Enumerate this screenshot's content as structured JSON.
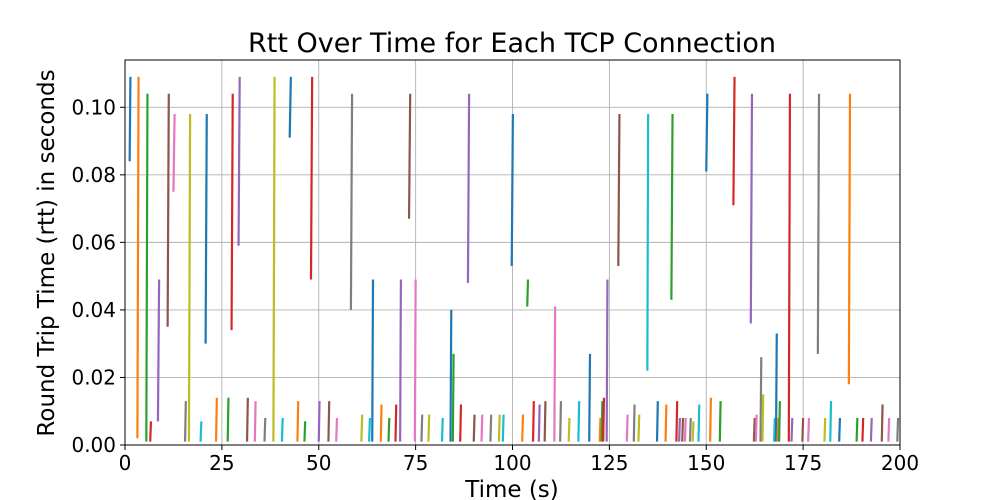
{
  "chart_data": {
    "type": "line",
    "title": "Rtt Over Time for Each TCP Connection",
    "xlabel": "Time (s)",
    "ylabel": "Round Trip Time (rtt) in seconds",
    "xlim": [
      0,
      200
    ],
    "ylim": [
      0,
      0.114
    ],
    "xticks": [
      0,
      25,
      50,
      75,
      100,
      125,
      150,
      175,
      200
    ],
    "xtick_labels": [
      "0",
      "25",
      "50",
      "75",
      "100",
      "125",
      "150",
      "175",
      "200"
    ],
    "yticks": [
      0.0,
      0.02,
      0.04,
      0.06,
      0.08,
      0.1
    ],
    "ytick_labels": [
      "0.00",
      "0.02",
      "0.04",
      "0.06",
      "0.08",
      "0.10"
    ],
    "grid": true,
    "legend": "none",
    "series_colors": [
      "#1f77b4",
      "#ff7f0e",
      "#2ca02c",
      "#d62728",
      "#9467bd",
      "#8c564b",
      "#e377c2",
      "#7f7f7f",
      "#bcbd22",
      "#17becf"
    ],
    "series": [
      {
        "x": [
          1.2,
          1.4
        ],
        "y": [
          0.084,
          0.109
        ],
        "color": "#1f77b4"
      },
      {
        "x": [
          3.2,
          3.5
        ],
        "y": [
          0.002,
          0.109
        ],
        "color": "#ff7f0e"
      },
      {
        "x": [
          5.5,
          5.8
        ],
        "y": [
          0.001,
          0.104
        ],
        "color": "#2ca02c"
      },
      {
        "x": [
          6.5,
          6.7
        ],
        "y": [
          0.001,
          0.007
        ],
        "color": "#d62728"
      },
      {
        "x": [
          8.5,
          8.8
        ],
        "y": [
          0.007,
          0.049
        ],
        "color": "#9467bd"
      },
      {
        "x": [
          11.0,
          11.3
        ],
        "y": [
          0.035,
          0.104
        ],
        "color": "#8c564b"
      },
      {
        "x": [
          12.5,
          12.8
        ],
        "y": [
          0.075,
          0.098
        ],
        "color": "#e377c2"
      },
      {
        "x": [
          15.5,
          15.7
        ],
        "y": [
          0.001,
          0.013
        ],
        "color": "#7f7f7f"
      },
      {
        "x": [
          16.5,
          16.8
        ],
        "y": [
          0.001,
          0.098
        ],
        "color": "#bcbd22"
      },
      {
        "x": [
          19.5,
          19.7
        ],
        "y": [
          0.001,
          0.007
        ],
        "color": "#17becf"
      },
      {
        "x": [
          20.8,
          21.1
        ],
        "y": [
          0.03,
          0.098
        ],
        "color": "#1f77b4"
      },
      {
        "x": [
          23.5,
          23.7
        ],
        "y": [
          0.001,
          0.014
        ],
        "color": "#ff7f0e"
      },
      {
        "x": [
          26.5,
          26.7
        ],
        "y": [
          0.001,
          0.014
        ],
        "color": "#2ca02c"
      },
      {
        "x": [
          27.5,
          27.8
        ],
        "y": [
          0.034,
          0.104
        ],
        "color": "#d62728"
      },
      {
        "x": [
          29.3,
          29.6
        ],
        "y": [
          0.059,
          0.109
        ],
        "color": "#9467bd"
      },
      {
        "x": [
          31.5,
          31.7
        ],
        "y": [
          0.001,
          0.014
        ],
        "color": "#8c564b"
      },
      {
        "x": [
          33.5,
          33.7
        ],
        "y": [
          0.001,
          0.013
        ],
        "color": "#e377c2"
      },
      {
        "x": [
          36.0,
          36.2
        ],
        "y": [
          0.001,
          0.008
        ],
        "color": "#7f7f7f"
      },
      {
        "x": [
          38.3,
          38.6
        ],
        "y": [
          0.001,
          0.109
        ],
        "color": "#bcbd22"
      },
      {
        "x": [
          40.5,
          40.7
        ],
        "y": [
          0.001,
          0.008
        ],
        "color": "#17becf"
      },
      {
        "x": [
          42.5,
          42.8
        ],
        "y": [
          0.091,
          0.109
        ],
        "color": "#1f77b4"
      },
      {
        "x": [
          44.5,
          44.7
        ],
        "y": [
          0.001,
          0.013
        ],
        "color": "#ff7f0e"
      },
      {
        "x": [
          46.3,
          46.5
        ],
        "y": [
          0.001,
          0.007
        ],
        "color": "#2ca02c"
      },
      {
        "x": [
          48.0,
          48.3
        ],
        "y": [
          0.049,
          0.109
        ],
        "color": "#d62728"
      },
      {
        "x": [
          50.0,
          50.2
        ],
        "y": [
          0.001,
          0.013
        ],
        "color": "#9467bd"
      },
      {
        "x": [
          52.5,
          52.7
        ],
        "y": [
          0.001,
          0.013
        ],
        "color": "#8c564b"
      },
      {
        "x": [
          54.5,
          54.7
        ],
        "y": [
          0.001,
          0.008
        ],
        "color": "#e377c2"
      },
      {
        "x": [
          58.3,
          58.6
        ],
        "y": [
          0.04,
          0.104
        ],
        "color": "#7f7f7f"
      },
      {
        "x": [
          61.0,
          61.2
        ],
        "y": [
          0.001,
          0.009
        ],
        "color": "#bcbd22"
      },
      {
        "x": [
          63.0,
          63.2
        ],
        "y": [
          0.001,
          0.008
        ],
        "color": "#17becf"
      },
      {
        "x": [
          63.8,
          64.0
        ],
        "y": [
          0.001,
          0.049
        ],
        "color": "#1f77b4"
      },
      {
        "x": [
          66.0,
          66.2
        ],
        "y": [
          0.001,
          0.012
        ],
        "color": "#ff7f0e"
      },
      {
        "x": [
          68.0,
          68.2
        ],
        "y": [
          0.001,
          0.008
        ],
        "color": "#2ca02c"
      },
      {
        "x": [
          69.8,
          70.0
        ],
        "y": [
          0.001,
          0.012
        ],
        "color": "#d62728"
      },
      {
        "x": [
          71.0,
          71.2
        ],
        "y": [
          0.001,
          0.049
        ],
        "color": "#9467bd"
      },
      {
        "x": [
          73.3,
          73.6
        ],
        "y": [
          0.067,
          0.104
        ],
        "color": "#8c564b"
      },
      {
        "x": [
          74.8,
          75.0
        ],
        "y": [
          0.001,
          0.049
        ],
        "color": "#e377c2"
      },
      {
        "x": [
          76.5,
          76.7
        ],
        "y": [
          0.001,
          0.009
        ],
        "color": "#7f7f7f"
      },
      {
        "x": [
          78.3,
          78.5
        ],
        "y": [
          0.001,
          0.009
        ],
        "color": "#bcbd22"
      },
      {
        "x": [
          81.8,
          82.0
        ],
        "y": [
          0.001,
          0.008
        ],
        "color": "#17becf"
      },
      {
        "x": [
          84.0,
          84.2
        ],
        "y": [
          0.001,
          0.04
        ],
        "color": "#1f77b4"
      },
      {
        "x": [
          84.6,
          84.8
        ],
        "y": [
          0.001,
          0.027
        ],
        "color": "#2ca02c"
      },
      {
        "x": [
          86.5,
          86.7
        ],
        "y": [
          0.001,
          0.012
        ],
        "color": "#d62728"
      },
      {
        "x": [
          88.5,
          88.8
        ],
        "y": [
          0.048,
          0.104
        ],
        "color": "#9467bd"
      },
      {
        "x": [
          90.0,
          90.2
        ],
        "y": [
          0.001,
          0.009
        ],
        "color": "#8c564b"
      },
      {
        "x": [
          92.0,
          92.2
        ],
        "y": [
          0.001,
          0.009
        ],
        "color": "#e377c2"
      },
      {
        "x": [
          94.3,
          94.5
        ],
        "y": [
          0.001,
          0.009
        ],
        "color": "#7f7f7f"
      },
      {
        "x": [
          96.5,
          96.7
        ],
        "y": [
          0.001,
          0.009
        ],
        "color": "#bcbd22"
      },
      {
        "x": [
          97.5,
          97.7
        ],
        "y": [
          0.001,
          0.009
        ],
        "color": "#17becf"
      },
      {
        "x": [
          99.8,
          100.1
        ],
        "y": [
          0.053,
          0.098
        ],
        "color": "#1f77b4"
      },
      {
        "x": [
          102.5,
          102.7
        ],
        "y": [
          0.001,
          0.009
        ],
        "color": "#ff7f0e"
      },
      {
        "x": [
          103.8,
          104.0
        ],
        "y": [
          0.041,
          0.049
        ],
        "color": "#2ca02c"
      },
      {
        "x": [
          105.3,
          105.5
        ],
        "y": [
          0.001,
          0.013
        ],
        "color": "#d62728"
      },
      {
        "x": [
          106.8,
          107.0
        ],
        "y": [
          0.001,
          0.012
        ],
        "color": "#9467bd"
      },
      {
        "x": [
          108.3,
          108.5
        ],
        "y": [
          0.001,
          0.013
        ],
        "color": "#8c564b"
      },
      {
        "x": [
          110.8,
          111.0
        ],
        "y": [
          0.001,
          0.041
        ],
        "color": "#e377c2"
      },
      {
        "x": [
          112.3,
          112.5
        ],
        "y": [
          0.001,
          0.013
        ],
        "color": "#7f7f7f"
      },
      {
        "x": [
          114.5,
          114.7
        ],
        "y": [
          0.001,
          0.008
        ],
        "color": "#bcbd22"
      },
      {
        "x": [
          117.0,
          117.2
        ],
        "y": [
          0.001,
          0.013
        ],
        "color": "#17becf"
      },
      {
        "x": [
          119.8,
          120.0
        ],
        "y": [
          0.001,
          0.027
        ],
        "color": "#1f77b4"
      },
      {
        "x": [
          122.5,
          122.7
        ],
        "y": [
          0.001,
          0.008
        ],
        "color": "#ff7f0e"
      },
      {
        "x": [
          123.0,
          123.2
        ],
        "y": [
          0.001,
          0.013
        ],
        "color": "#2ca02c"
      },
      {
        "x": [
          123.4,
          123.6
        ],
        "y": [
          0.001,
          0.014
        ],
        "color": "#d62728"
      },
      {
        "x": [
          124.3,
          124.5
        ],
        "y": [
          0.001,
          0.049
        ],
        "color": "#9467bd"
      },
      {
        "x": [
          127.3,
          127.6
        ],
        "y": [
          0.053,
          0.098
        ],
        "color": "#8c564b"
      },
      {
        "x": [
          129.5,
          129.7
        ],
        "y": [
          0.001,
          0.009
        ],
        "color": "#e377c2"
      },
      {
        "x": [
          131.3,
          131.5
        ],
        "y": [
          0.001,
          0.012
        ],
        "color": "#7f7f7f"
      },
      {
        "x": [
          132.5,
          132.7
        ],
        "y": [
          0.001,
          0.009
        ],
        "color": "#bcbd22"
      },
      {
        "x": [
          134.8,
          135.0
        ],
        "y": [
          0.022,
          0.098
        ],
        "color": "#17becf"
      },
      {
        "x": [
          137.3,
          137.5
        ],
        "y": [
          0.001,
          0.013
        ],
        "color": "#1f77b4"
      },
      {
        "x": [
          139.5,
          139.7
        ],
        "y": [
          0.001,
          0.012
        ],
        "color": "#ff7f0e"
      },
      {
        "x": [
          141.0,
          141.3
        ],
        "y": [
          0.043,
          0.098
        ],
        "color": "#2ca02c"
      },
      {
        "x": [
          142.3,
          142.5
        ],
        "y": [
          0.001,
          0.013
        ],
        "color": "#d62728"
      },
      {
        "x": [
          143.0,
          143.2
        ],
        "y": [
          0.001,
          0.008
        ],
        "color": "#9467bd"
      },
      {
        "x": [
          143.8,
          144.0
        ],
        "y": [
          0.001,
          0.008
        ],
        "color": "#8c564b"
      },
      {
        "x": [
          144.5,
          144.7
        ],
        "y": [
          0.001,
          0.008
        ],
        "color": "#e377c2"
      },
      {
        "x": [
          145.8,
          146.0
        ],
        "y": [
          0.001,
          0.008
        ],
        "color": "#7f7f7f"
      },
      {
        "x": [
          146.5,
          146.7
        ],
        "y": [
          0.001,
          0.007
        ],
        "color": "#bcbd22"
      },
      {
        "x": [
          148.0,
          148.2
        ],
        "y": [
          0.001,
          0.012
        ],
        "color": "#17becf"
      },
      {
        "x": [
          150.0,
          150.3
        ],
        "y": [
          0.081,
          0.104
        ],
        "color": "#1f77b4"
      },
      {
        "x": [
          151.0,
          151.2
        ],
        "y": [
          0.001,
          0.014
        ],
        "color": "#ff7f0e"
      },
      {
        "x": [
          153.5,
          153.7
        ],
        "y": [
          0.001,
          0.013
        ],
        "color": "#2ca02c"
      },
      {
        "x": [
          157.0,
          157.3
        ],
        "y": [
          0.071,
          0.109
        ],
        "color": "#d62728"
      },
      {
        "x": [
          161.5,
          161.8
        ],
        "y": [
          0.036,
          0.104
        ],
        "color": "#9467bd"
      },
      {
        "x": [
          162.3,
          162.5
        ],
        "y": [
          0.001,
          0.008
        ],
        "color": "#8c564b"
      },
      {
        "x": [
          162.8,
          163.0
        ],
        "y": [
          0.001,
          0.009
        ],
        "color": "#e377c2"
      },
      {
        "x": [
          164.0,
          164.2
        ],
        "y": [
          0.001,
          0.026
        ],
        "color": "#7f7f7f"
      },
      {
        "x": [
          164.5,
          164.7
        ],
        "y": [
          0.001,
          0.015
        ],
        "color": "#bcbd22"
      },
      {
        "x": [
          167.5,
          167.7
        ],
        "y": [
          0.001,
          0.008
        ],
        "color": "#17becf"
      },
      {
        "x": [
          168.0,
          168.2
        ],
        "y": [
          0.001,
          0.033
        ],
        "color": "#1f77b4"
      },
      {
        "x": [
          168.4,
          168.6
        ],
        "y": [
          0.001,
          0.008
        ],
        "color": "#ff7f0e"
      },
      {
        "x": [
          168.8,
          169.0
        ],
        "y": [
          0.001,
          0.013
        ],
        "color": "#2ca02c"
      },
      {
        "x": [
          171.3,
          171.6
        ],
        "y": [
          0.001,
          0.104
        ],
        "color": "#d62728"
      },
      {
        "x": [
          172.0,
          172.2
        ],
        "y": [
          0.001,
          0.008
        ],
        "color": "#9467bd"
      },
      {
        "x": [
          174.8,
          175.0
        ],
        "y": [
          0.001,
          0.008
        ],
        "color": "#8c564b"
      },
      {
        "x": [
          176.3,
          176.5
        ],
        "y": [
          0.001,
          0.008
        ],
        "color": "#e377c2"
      },
      {
        "x": [
          178.8,
          179.1
        ],
        "y": [
          0.027,
          0.104
        ],
        "color": "#7f7f7f"
      },
      {
        "x": [
          180.5,
          180.7
        ],
        "y": [
          0.001,
          0.008
        ],
        "color": "#bcbd22"
      },
      {
        "x": [
          182.0,
          182.2
        ],
        "y": [
          0.001,
          0.013
        ],
        "color": "#17becf"
      },
      {
        "x": [
          184.3,
          184.5
        ],
        "y": [
          0.001,
          0.008
        ],
        "color": "#1f77b4"
      },
      {
        "x": [
          186.8,
          187.1
        ],
        "y": [
          0.018,
          0.104
        ],
        "color": "#ff7f0e"
      },
      {
        "x": [
          188.8,
          189.0
        ],
        "y": [
          0.001,
          0.008
        ],
        "color": "#2ca02c"
      },
      {
        "x": [
          190.3,
          190.5
        ],
        "y": [
          0.001,
          0.008
        ],
        "color": "#d62728"
      },
      {
        "x": [
          192.5,
          192.7
        ],
        "y": [
          0.001,
          0.008
        ],
        "color": "#9467bd"
      },
      {
        "x": [
          195.3,
          195.5
        ],
        "y": [
          0.001,
          0.012
        ],
        "color": "#8c564b"
      },
      {
        "x": [
          197.0,
          197.2
        ],
        "y": [
          0.001,
          0.008
        ],
        "color": "#e377c2"
      },
      {
        "x": [
          199.3,
          199.5
        ],
        "y": [
          0.001,
          0.008
        ],
        "color": "#7f7f7f"
      }
    ]
  }
}
